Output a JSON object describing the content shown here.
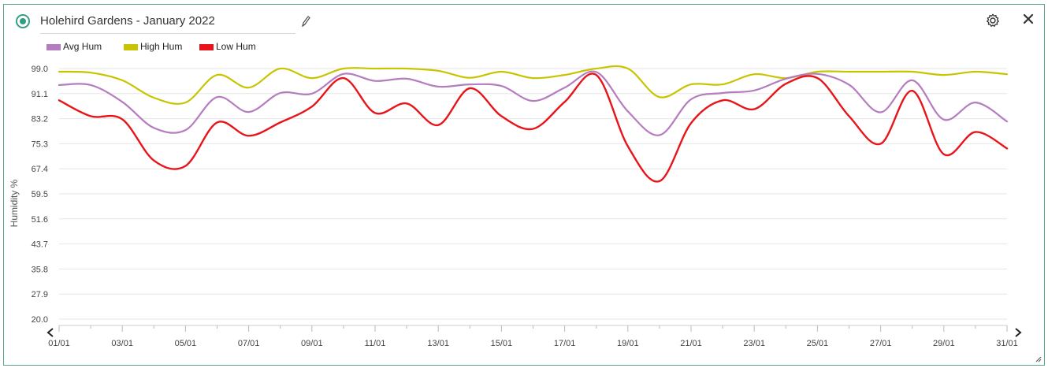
{
  "window": {
    "title": "Holehird Gardens - January 2022",
    "accent_color": "#2e9f86"
  },
  "icons": {
    "status": "status-radio-icon",
    "edit": "pencil-icon",
    "settings": "gear-icon",
    "close": "close-icon",
    "prev": "chevron-left-icon",
    "next": "chevron-right-icon",
    "resize": "resize-grip-icon"
  },
  "chart_data": {
    "type": "line",
    "title": "",
    "xlabel": "",
    "ylabel": "Humidity %",
    "legend_position": "top-left",
    "grid": "horizontal",
    "ylim": [
      20.0,
      99.0
    ],
    "yticks": [
      "99.0",
      "91.1",
      "83.2",
      "75.3",
      "67.4",
      "59.5",
      "51.6",
      "43.7",
      "35.8",
      "27.9",
      "20.0"
    ],
    "xticks": [
      "01/01",
      "03/01",
      "05/01",
      "07/01",
      "09/01",
      "11/01",
      "13/01",
      "15/01",
      "17/01",
      "19/01",
      "21/01",
      "23/01",
      "25/01",
      "27/01",
      "29/01",
      "31/01"
    ],
    "x": [
      1,
      2,
      3,
      4,
      5,
      6,
      7,
      8,
      9,
      10,
      11,
      12,
      13,
      14,
      15,
      16,
      17,
      18,
      19,
      20,
      21,
      22,
      23,
      24,
      25,
      26,
      27,
      28,
      29,
      30,
      31
    ],
    "x_unit": "day of January 2022",
    "series": [
      {
        "name": "Avg Hum",
        "color": "#b57cbf",
        "values": [
          93.8,
          93.8,
          88.5,
          80.3,
          79.6,
          90.0,
          85.3,
          91.3,
          91.1,
          97.3,
          95.1,
          95.8,
          93.3,
          94.0,
          93.5,
          88.8,
          93.0,
          97.9,
          85.5,
          78.0,
          89.3,
          91.3,
          92.1,
          95.8,
          97.3,
          93.9,
          85.2,
          95.3,
          82.9,
          88.3,
          82.3
        ]
      },
      {
        "name": "High Hum",
        "color": "#c8c400",
        "values": [
          98.0,
          97.7,
          95.3,
          89.8,
          88.3,
          97.0,
          93.0,
          99.0,
          96.0,
          99.0,
          99.0,
          99.0,
          98.3,
          96.1,
          98.0,
          96.0,
          97.0,
          99.0,
          99.0,
          90.0,
          94.0,
          94.0,
          97.2,
          96.0,
          98.0,
          98.0,
          98.0,
          98.0,
          97.0,
          98.0,
          97.2
        ]
      },
      {
        "name": "Low Hum",
        "color": "#e8141a",
        "values": [
          89.0,
          84.0,
          83.0,
          70.0,
          68.3,
          82.0,
          77.8,
          82.0,
          87.0,
          96.0,
          85.0,
          88.0,
          81.2,
          92.8,
          84.0,
          80.0,
          88.5,
          97.0,
          74.5,
          63.5,
          81.8,
          89.0,
          86.2,
          94.2,
          96.0,
          84.0,
          75.3,
          92.0,
          72.0,
          79.0,
          73.8
        ]
      }
    ]
  }
}
